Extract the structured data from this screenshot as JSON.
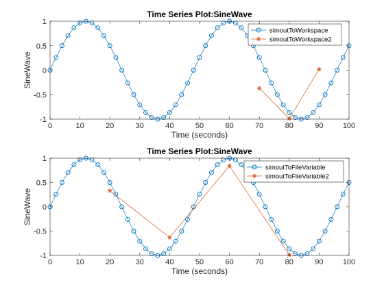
{
  "colors": {
    "series1": "#0072bd",
    "series2": "#d95319",
    "axis": "#262626",
    "background": "#ffffff"
  },
  "chart_data": [
    {
      "type": "line",
      "title": "Time Series Plot:SineWave",
      "xlabel": "Time (seconds)",
      "ylabel": "SineWave",
      "xlim": [
        0,
        100
      ],
      "ylim": [
        -1,
        1
      ],
      "xticks": [
        0,
        10,
        20,
        30,
        40,
        50,
        60,
        70,
        80,
        90,
        100
      ],
      "yticks": [
        -1,
        -0.5,
        0,
        0.5,
        1
      ],
      "xtick_labels": [
        "0",
        "10",
        "20",
        "30",
        "40",
        "50",
        "60",
        "70",
        "80",
        "90",
        "100"
      ],
      "ytick_labels": [
        "-1",
        "-0.5",
        "0",
        "0.5",
        "1"
      ],
      "grid": false,
      "legend_position": "top-right",
      "series": [
        {
          "name": "simoutToWorkspace",
          "marker": "circle",
          "color": "#0072bd",
          "x": [
            0,
            2,
            4,
            6,
            8,
            10,
            12,
            14,
            16,
            18,
            20,
            22,
            24,
            26,
            28,
            30,
            32,
            34,
            36,
            38,
            40,
            42,
            44,
            46,
            48,
            50,
            52,
            54,
            56,
            58,
            60,
            62,
            64,
            66,
            68,
            70,
            72,
            74,
            76,
            78,
            80,
            82,
            84,
            86,
            88,
            90,
            92,
            94,
            96,
            98,
            100
          ],
          "y": [
            0,
            0.259,
            0.5,
            0.707,
            0.866,
            0.966,
            1,
            0.966,
            0.866,
            0.707,
            0.5,
            0.259,
            0,
            -0.259,
            -0.5,
            -0.707,
            -0.866,
            -0.966,
            -1,
            -0.966,
            -0.866,
            -0.707,
            -0.5,
            -0.259,
            0,
            0.259,
            0.5,
            0.707,
            0.866,
            0.966,
            1,
            0.966,
            0.866,
            0.707,
            0.5,
            0.259,
            0,
            -0.259,
            -0.5,
            -0.707,
            -0.866,
            -0.966,
            -1,
            -0.966,
            -0.866,
            -0.707,
            -0.5,
            -0.259,
            0,
            0.259,
            0.5
          ]
        },
        {
          "name": "simoutToWorkspace2",
          "marker": "asterisk",
          "color": "#d95319",
          "x": [
            70,
            80,
            90
          ],
          "y": [
            -0.37,
            -0.99,
            0.02
          ]
        }
      ]
    },
    {
      "type": "line",
      "title": "Time Series Plot:SineWave",
      "xlabel": "Time (seconds)",
      "ylabel": "SineWave",
      "xlim": [
        0,
        100
      ],
      "ylim": [
        -1,
        1
      ],
      "xticks": [
        0,
        10,
        20,
        30,
        40,
        50,
        60,
        70,
        80,
        90,
        100
      ],
      "yticks": [
        -1,
        -0.5,
        0,
        0.5,
        1
      ],
      "xtick_labels": [
        "0",
        "10",
        "20",
        "30",
        "40",
        "50",
        "60",
        "70",
        "80",
        "90",
        "100"
      ],
      "ytick_labels": [
        "-1",
        "-0.5",
        "0",
        "0.5",
        "1"
      ],
      "grid": false,
      "legend_position": "top-right",
      "series": [
        {
          "name": "simoutToFileVariable",
          "marker": "circle",
          "color": "#0072bd",
          "x": [
            0,
            2,
            4,
            6,
            8,
            10,
            12,
            14,
            16,
            18,
            20,
            22,
            24,
            26,
            28,
            30,
            32,
            34,
            36,
            38,
            40,
            42,
            44,
            46,
            48,
            50,
            52,
            54,
            56,
            58,
            60,
            62,
            64,
            66,
            68,
            70,
            72,
            74,
            76,
            78,
            80,
            82,
            84,
            86,
            88,
            90,
            92,
            94,
            96,
            98,
            100
          ],
          "y": [
            0,
            0.259,
            0.5,
            0.707,
            0.866,
            0.966,
            1,
            0.966,
            0.866,
            0.707,
            0.5,
            0.259,
            0,
            -0.259,
            -0.5,
            -0.707,
            -0.866,
            -0.966,
            -1,
            -0.966,
            -0.866,
            -0.707,
            -0.5,
            -0.259,
            0,
            0.259,
            0.5,
            0.707,
            0.866,
            0.966,
            1,
            0.966,
            0.866,
            0.707,
            0.5,
            0.259,
            0,
            -0.259,
            -0.5,
            -0.707,
            -0.866,
            -0.966,
            -1,
            -0.966,
            -0.866,
            -0.707,
            -0.5,
            -0.259,
            0,
            0.259,
            0.5
          ]
        },
        {
          "name": "simoutToFileVariable2",
          "marker": "asterisk",
          "color": "#d95319",
          "x": [
            20,
            40,
            60,
            80
          ],
          "y": [
            0.33,
            -0.63,
            0.84,
            -0.99
          ]
        }
      ]
    }
  ]
}
